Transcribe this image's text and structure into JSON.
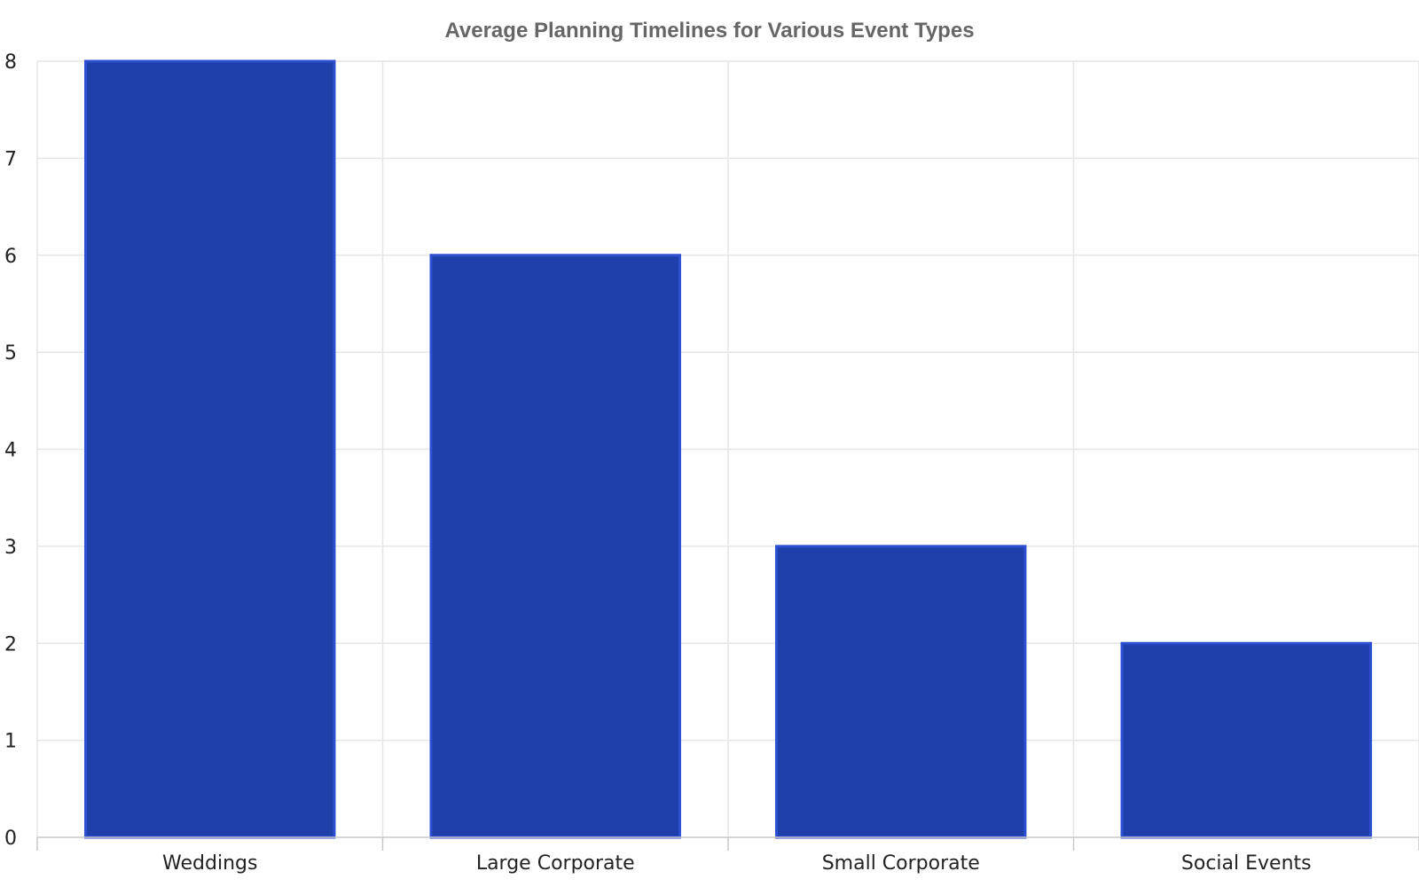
{
  "chart_data": {
    "type": "bar",
    "title": "Average Planning Timelines for Various Event Types",
    "xlabel": "",
    "ylabel": "",
    "categories": [
      "Weddings",
      "Large Corporate",
      "Small Corporate",
      "Social Events"
    ],
    "values": [
      8,
      6,
      3,
      2
    ],
    "ylim": [
      0,
      8
    ],
    "yticks": [
      0,
      1,
      2,
      3,
      4,
      5,
      6,
      7,
      8
    ],
    "grid": true,
    "legend": "none",
    "colors": {
      "bar_fill": "#1f40ab",
      "bar_edge": "#2d4fd1",
      "title": "#666666",
      "grid": "#e6e6e6",
      "axis": "#c8c8c8",
      "tick_text": "#222222"
    }
  }
}
